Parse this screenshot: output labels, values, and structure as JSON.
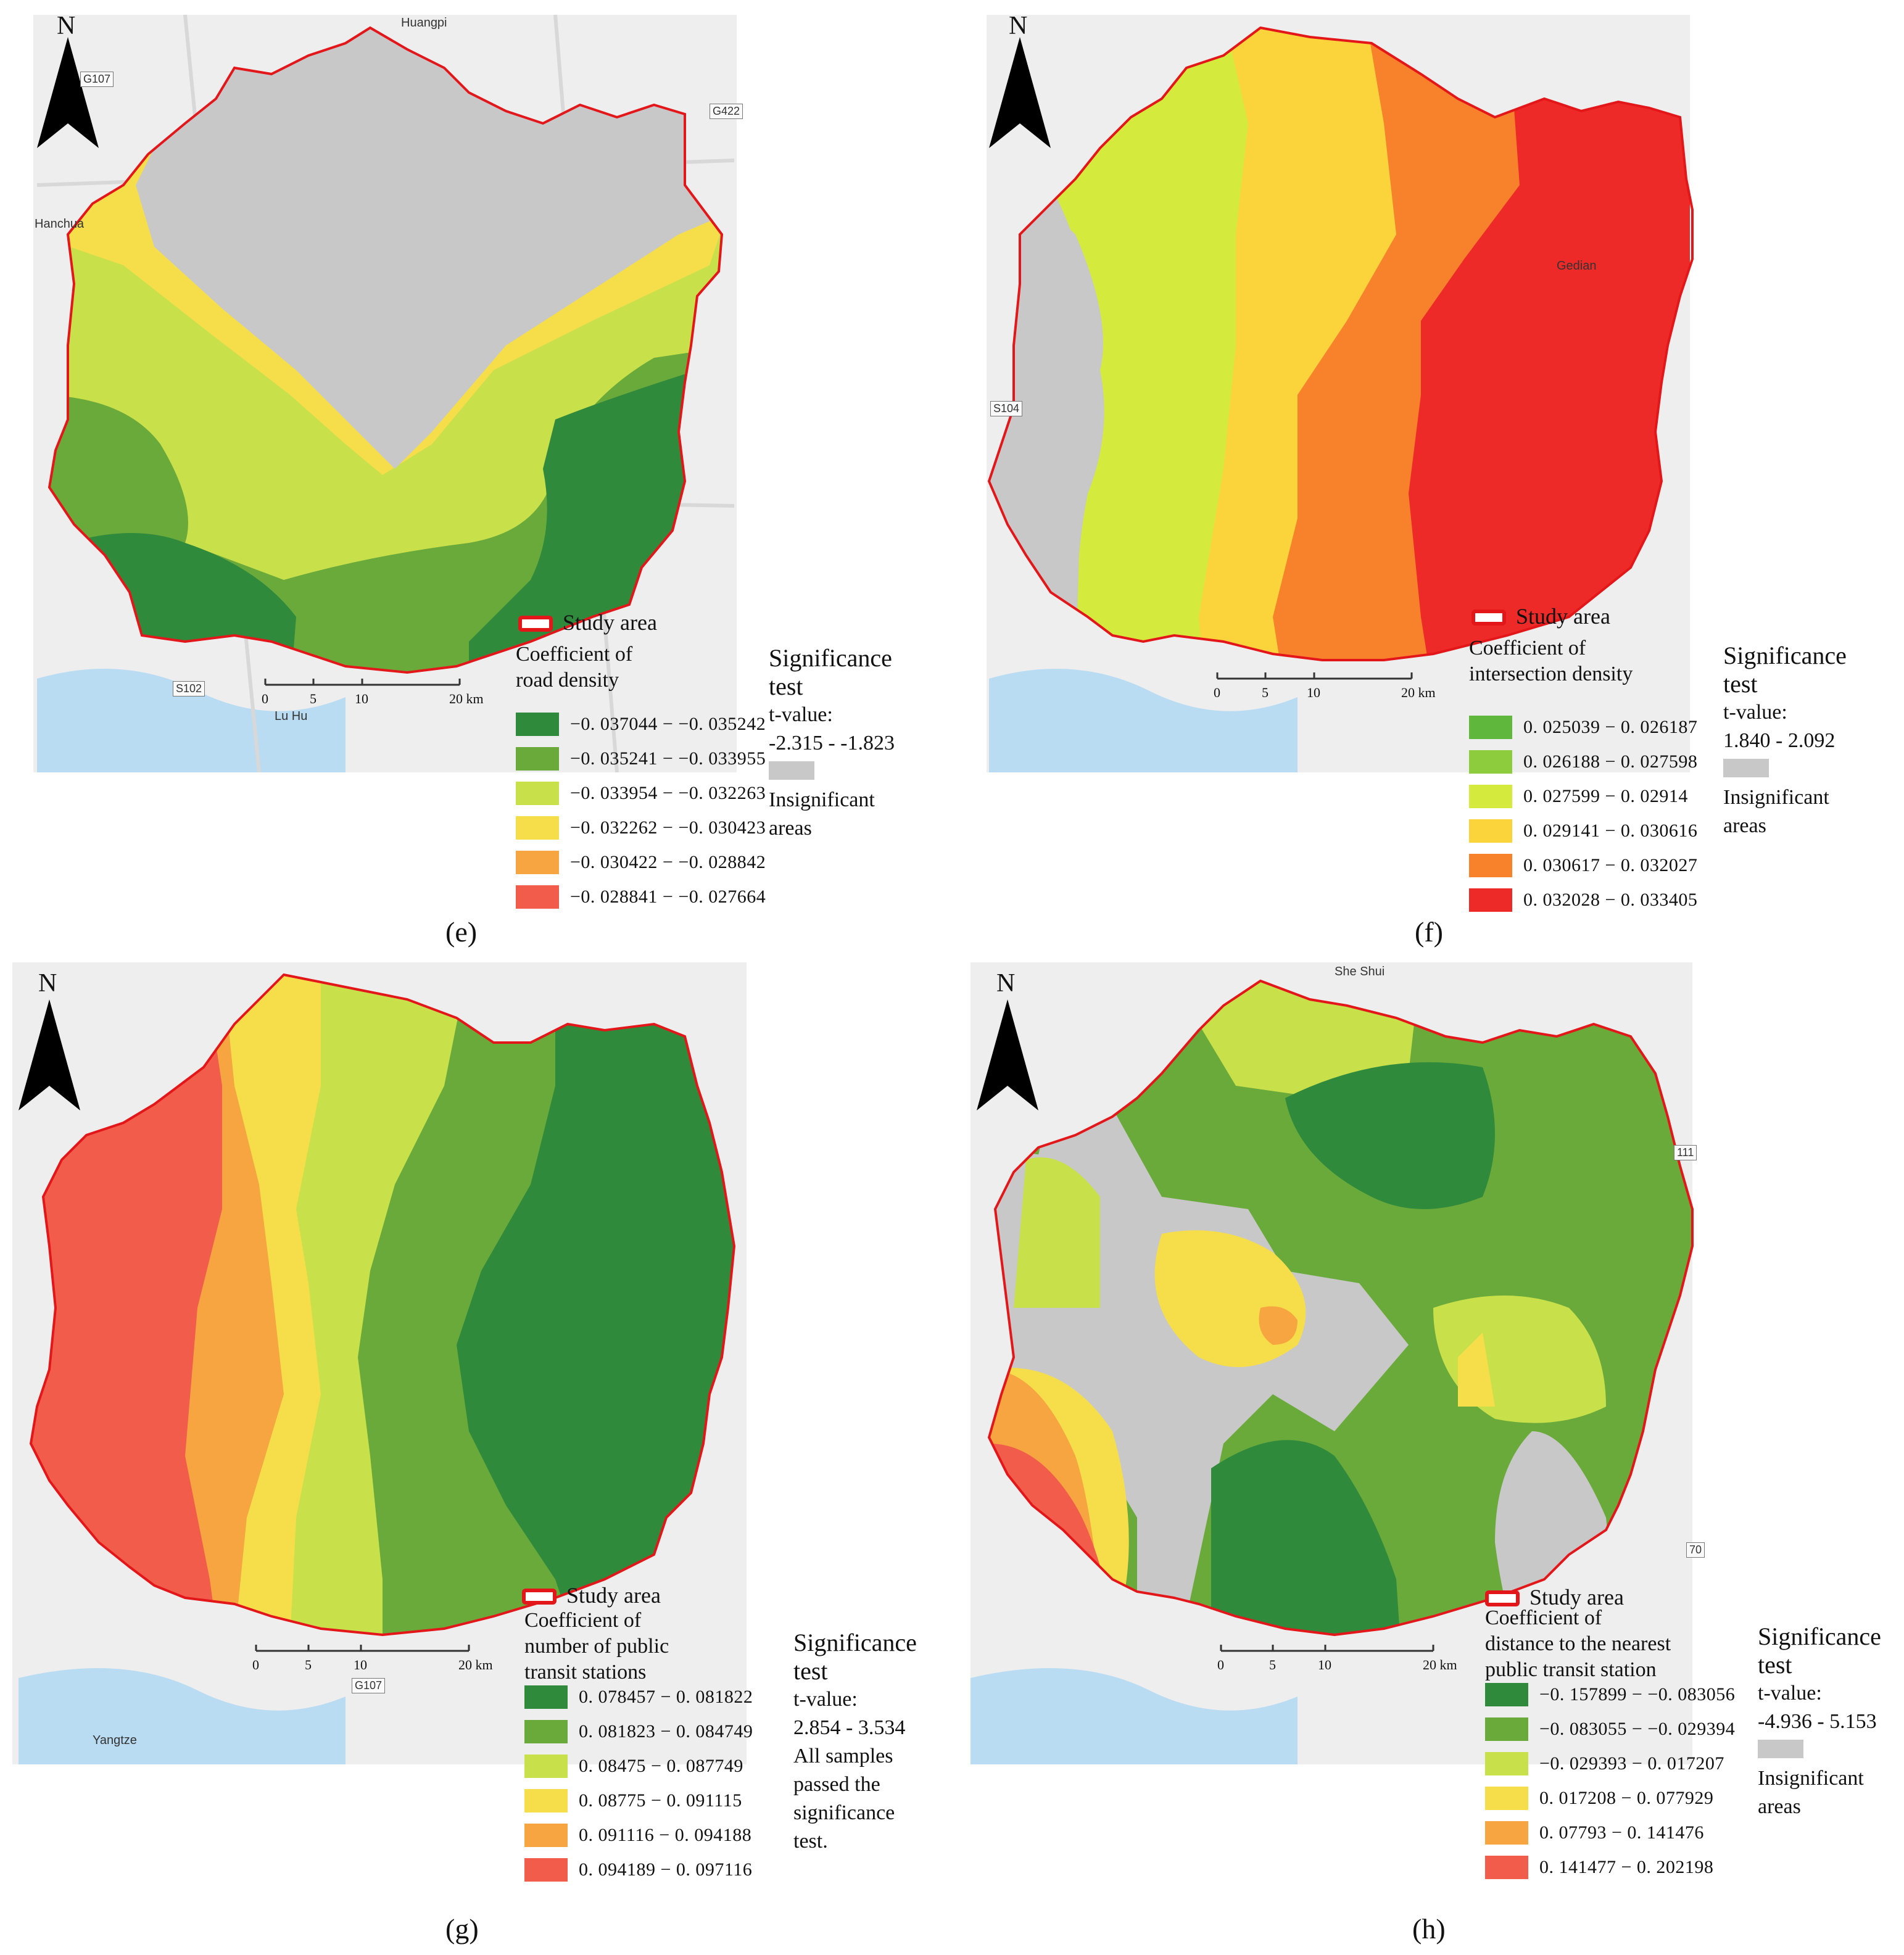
{
  "panels": [
    {
      "id": "e",
      "caption": "(e)",
      "study_area": "Study area",
      "legend_title": "Coefficient of\nroad density",
      "legend": [
        {
          "label": "−0. 037044 − −0. 035242",
          "color": "#2f8a3c"
        },
        {
          "label": "−0. 035241 − −0. 033955",
          "color": "#6aaa3a"
        },
        {
          "label": "−0. 033954 − −0. 032263",
          "color": "#c8e04a"
        },
        {
          "label": "−0. 032262 − −0. 030423",
          "color": "#f6de4a"
        },
        {
          "label": "−0. 030422 − −0. 028842",
          "color": "#f7a541"
        },
        {
          "label": "−0. 028841 − −0. 027664",
          "color": "#f25c4a"
        }
      ],
      "significance": {
        "label": "Significance\ntest",
        "t_label": "t-value:",
        "t_range": "-2.315 - -1.823",
        "insignificant": "Insignificant\nareas"
      }
    },
    {
      "id": "f",
      "caption": "(f)",
      "study_area": "Study area",
      "legend_title": "Coefficient of\nintersection density",
      "legend": [
        {
          "label": "0. 025039 − 0. 026187",
          "color": "#5fb83c"
        },
        {
          "label": "0. 026188 − 0. 027598",
          "color": "#8dcc3c"
        },
        {
          "label": "0. 027599 − 0. 02914",
          "color": "#d4ea3c"
        },
        {
          "label": "0. 029141 − 0. 030616",
          "color": "#fbd43c"
        },
        {
          "label": "0. 030617 − 0. 032027",
          "color": "#f8812c"
        },
        {
          "label": "0. 032028 − 0. 033405",
          "color": "#ee2a28"
        }
      ],
      "significance": {
        "label": "Significance\ntest",
        "t_label": "t-value:",
        "t_range": "1.840 - 2.092",
        "insignificant": "Insignificant\nareas"
      }
    },
    {
      "id": "g",
      "caption": "(g)",
      "study_area": "Study area",
      "legend_title": "Coefficient of\nnumber of public\ntransit stations",
      "legend": [
        {
          "label": "0. 078457 − 0. 081822",
          "color": "#2f8a3c"
        },
        {
          "label": "0. 081823 − 0. 084749",
          "color": "#6aaa3a"
        },
        {
          "label": "0. 08475 − 0. 087749",
          "color": "#c8e04a"
        },
        {
          "label": "0. 08775 − 0. 091115",
          "color": "#f6de4a"
        },
        {
          "label": "0. 091116 − 0. 094188",
          "color": "#f7a541"
        },
        {
          "label": "0. 094189 − 0. 097116",
          "color": "#f25c4a"
        }
      ],
      "significance": {
        "label": "Significance\ntest",
        "t_label": "t-value:",
        "t_range": "2.854 - 3.534",
        "note": "All samples\npassed the\nsignificance\ntest."
      }
    },
    {
      "id": "h",
      "caption": "(h)",
      "study_area": "Study area",
      "legend_title": "Coefficient of\ndistance to the nearest\npublic transit station",
      "legend": [
        {
          "label": "−0. 157899 − −0. 083056",
          "color": "#2f8a3c"
        },
        {
          "label": "−0. 083055 − −0. 029394",
          "color": "#6aaa3a"
        },
        {
          "label": "−0. 029393 − 0. 017207",
          "color": "#c8e04a"
        },
        {
          "label": "0. 017208 − 0. 077929",
          "color": "#f6de4a"
        },
        {
          "label": "0. 07793 − 0. 141476",
          "color": "#f7a541"
        },
        {
          "label": "0. 141477 − 0. 202198",
          "color": "#f25c4a"
        }
      ],
      "significance": {
        "label": "Significance\ntest",
        "t_label": "t-value:",
        "t_range": "-4.936 - 5.153",
        "insignificant": "Insignificant\nareas"
      }
    }
  ],
  "map": {
    "north": "N",
    "scale_ticks": [
      "0",
      "5",
      "10",
      "20 km"
    ],
    "place_labels": [
      "Huangpi",
      "Hanchua",
      "Gedian",
      "Lu Hu",
      "Yangtze",
      "She Shui"
    ],
    "road_shields": [
      "G107",
      "G422",
      "111",
      "S104",
      "S102",
      "G107",
      "70"
    ]
  },
  "colors": {
    "insignificant": "#c8c8c8",
    "study_area_border": "#e3161a",
    "basemap": "#eeeeee",
    "water": "#b9dcf2"
  }
}
